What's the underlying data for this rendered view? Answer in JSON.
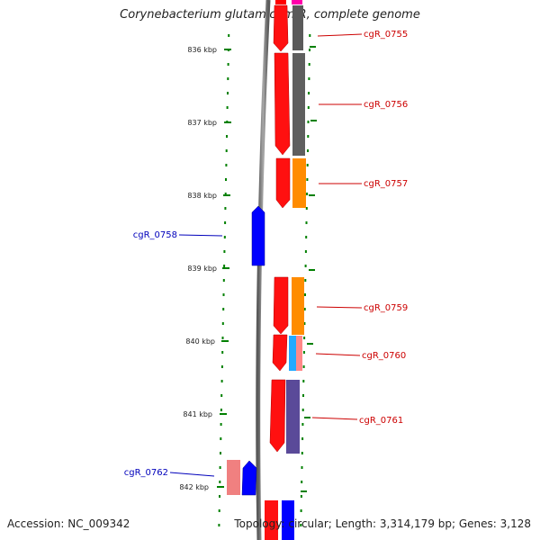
{
  "title": "Corynebacterium glutamicum R, complete genome",
  "accession": "Accession: NC_009342",
  "topology": "Topology: circular; Length: 3,314,179 bp; Genes: 3,128",
  "colors": {
    "forward_cds": "#ff0000",
    "reverse_cds": "#0000ff",
    "backbone": "#888888",
    "ticks": "#008000",
    "label_forward": "#cc0000",
    "label_reverse": "#0000bb"
  },
  "ruler": [
    {
      "label": "836 kbp"
    },
    {
      "label": "837 kbp"
    },
    {
      "label": "838 kbp"
    },
    {
      "label": "839 kbp"
    },
    {
      "label": "840 kbp"
    },
    {
      "label": "841 kbp"
    },
    {
      "label": "842 kbp"
    }
  ],
  "genes": [
    {
      "name": "cgR_0755",
      "strand": "+"
    },
    {
      "name": "cgR_0756",
      "strand": "+"
    },
    {
      "name": "cgR_0757",
      "strand": "+"
    },
    {
      "name": "cgR_0758",
      "strand": "-"
    },
    {
      "name": "cgR_0759",
      "strand": "+"
    },
    {
      "name": "cgR_0760",
      "strand": "+"
    },
    {
      "name": "cgR_0761",
      "strand": "+"
    },
    {
      "name": "cgR_0762",
      "strand": "-"
    }
  ]
}
